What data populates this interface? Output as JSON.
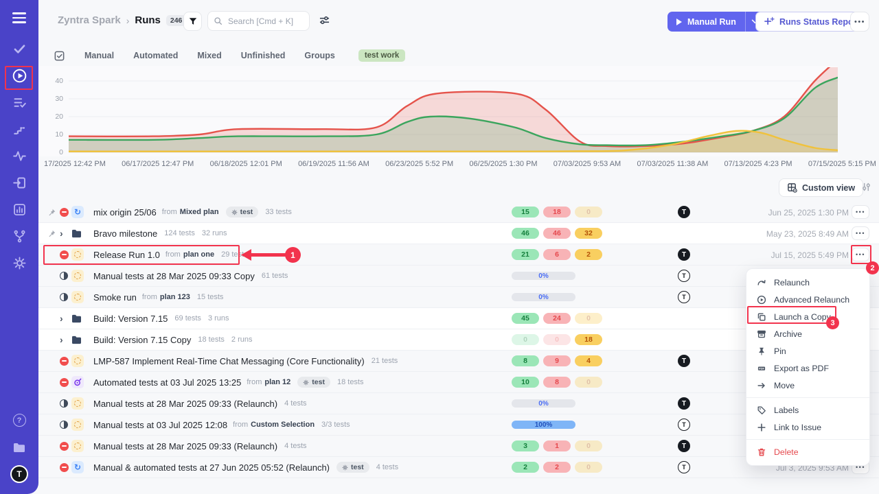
{
  "app": {
    "avatar_initial": "T"
  },
  "labels": {
    "from": "from"
  },
  "sidebar": {
    "items": [
      "check",
      "play-circle",
      "checklist",
      "steps",
      "pulse",
      "box-arrow",
      "bar-chart",
      "branch",
      "gear"
    ],
    "active_item": "play-circle",
    "bottom": [
      "help",
      "folders",
      "avatar"
    ]
  },
  "header": {
    "breadcrumb": {
      "project": "Zyntra Spark",
      "separator": "›",
      "page": "Runs",
      "count": "246"
    },
    "search_placeholder": "Search [Cmd + K]",
    "manual_run_label": "Manual Run",
    "runs_status_report_label": "Runs Status Report"
  },
  "tabs": {
    "items": [
      "Manual",
      "Automated",
      "Mixed",
      "Unfinished",
      "Groups"
    ],
    "filter_tag": "test work"
  },
  "chart_data": {
    "type": "area",
    "title": "",
    "x_labels": [
      "17/2025 12:42 PM",
      "06/17/2025 12:47 PM",
      "06/18/2025 12:01 PM",
      "06/19/2025 11:56 AM",
      "06/23/2025 5:52 PM",
      "06/25/2025 1:30 PM",
      "07/03/2025 9:53 AM",
      "07/03/2025 11:38 AM",
      "07/13/2025 4:23 PM",
      "07/15/2025 5:15 PM"
    ],
    "yticks": [
      0,
      10,
      20,
      30,
      40
    ],
    "ylim": [
      0,
      40
    ],
    "grid": true,
    "legend": "none",
    "series": [
      {
        "name": "red",
        "color": "#E5534B",
        "fill": "rgba(229,83,75,0.20)",
        "points": [
          [
            0,
            9
          ],
          [
            0.11,
            9
          ],
          [
            0.17,
            10
          ],
          [
            0.22,
            13
          ],
          [
            0.33,
            13
          ],
          [
            0.4,
            14
          ],
          [
            0.44,
            26
          ],
          [
            0.48,
            33
          ],
          [
            0.58,
            33
          ],
          [
            0.62,
            24
          ],
          [
            0.665,
            6
          ],
          [
            0.7,
            3.5
          ],
          [
            0.75,
            3.5
          ],
          [
            0.8,
            5
          ],
          [
            0.85,
            8.5
          ],
          [
            0.889,
            12
          ],
          [
            0.93,
            20
          ],
          [
            0.97,
            40
          ],
          [
            1,
            52
          ]
        ]
      },
      {
        "name": "green",
        "color": "#3BA55D",
        "fill": "rgba(59,165,93,0.20)",
        "points": [
          [
            0,
            7
          ],
          [
            0.11,
            7
          ],
          [
            0.17,
            8
          ],
          [
            0.22,
            9
          ],
          [
            0.33,
            9
          ],
          [
            0.4,
            10
          ],
          [
            0.44,
            17
          ],
          [
            0.47,
            20
          ],
          [
            0.52,
            19
          ],
          [
            0.58,
            14
          ],
          [
            0.62,
            8
          ],
          [
            0.665,
            4.5
          ],
          [
            0.7,
            4
          ],
          [
            0.75,
            4
          ],
          [
            0.8,
            6
          ],
          [
            0.85,
            9
          ],
          [
            0.889,
            12
          ],
          [
            0.93,
            19
          ],
          [
            0.97,
            36
          ],
          [
            1,
            42
          ]
        ]
      },
      {
        "name": "yellow",
        "color": "#F0C23C",
        "fill": "rgba(240,194,60,0.28)",
        "points": [
          [
            0,
            0.5
          ],
          [
            0.55,
            0.5
          ],
          [
            0.65,
            0.6
          ],
          [
            0.72,
            1
          ],
          [
            0.78,
            4
          ],
          [
            0.83,
            9
          ],
          [
            0.868,
            12
          ],
          [
            0.9,
            11
          ],
          [
            0.93,
            7
          ],
          [
            0.97,
            2.5
          ],
          [
            1,
            1.2
          ]
        ]
      }
    ]
  },
  "toolbar": {
    "custom_view_label": "Custom view"
  },
  "list": {
    "rows": [
      {
        "pinned": true,
        "status": "stopped",
        "type": "mixed",
        "title": "mix origin 25/06",
        "from": "Mixed plan",
        "tag": "test",
        "meta": [
          "33 tests"
        ],
        "badges": [
          {
            "value": "15",
            "faded": false
          },
          {
            "value": "18",
            "faded": false
          },
          {
            "value": "0",
            "faded": true
          }
        ],
        "progress": null,
        "avatar": "filled",
        "date": "Jun 25, 2025 1:30 PM",
        "more": true,
        "white": false
      },
      {
        "pinned": true,
        "status": "expand",
        "type": "folder",
        "title": "Bravo milestone",
        "from": null,
        "tag": null,
        "meta": [
          "124 tests",
          "32 runs"
        ],
        "badges": [
          {
            "value": "46",
            "faded": false
          },
          {
            "value": "46",
            "faded": false
          },
          {
            "value": "32",
            "faded": false
          }
        ],
        "progress": null,
        "avatar": null,
        "date": "May 23, 2025 8:49 AM",
        "more": true,
        "white": true
      },
      {
        "pinned": false,
        "status": "stopped",
        "type": "manual",
        "title": "Release Run 1.0",
        "from": "plan one",
        "tag": null,
        "meta": [
          "29 tests"
        ],
        "badges": [
          {
            "value": "21",
            "faded": false
          },
          {
            "value": "6",
            "faded": false
          },
          {
            "value": "2",
            "faded": false
          }
        ],
        "progress": null,
        "avatar": "filled",
        "date": "Jul 15, 2025 5:49 PM",
        "more": true,
        "white": false
      },
      {
        "pinned": false,
        "status": "inprogress",
        "type": "manual",
        "title": "Manual tests at 28 Mar 2025 09:33 Copy",
        "from": null,
        "tag": null,
        "meta": [
          "61 tests"
        ],
        "badges": null,
        "progress": {
          "label": "0%",
          "full": false
        },
        "avatar": "outline",
        "date": null,
        "more": false,
        "white": false
      },
      {
        "pinned": false,
        "status": "inprogress",
        "type": "manual",
        "title": "Smoke run",
        "from": "plan 123",
        "tag": null,
        "meta": [
          "15 tests"
        ],
        "badges": null,
        "progress": {
          "label": "0%",
          "full": false
        },
        "avatar": "outline",
        "date": null,
        "more": false,
        "white": false
      },
      {
        "pinned": false,
        "status": "expand",
        "type": "folder",
        "title": "Build: Version 7.15",
        "from": null,
        "tag": null,
        "meta": [
          "69 tests",
          "3 runs"
        ],
        "badges": [
          {
            "value": "45",
            "faded": false
          },
          {
            "value": "24",
            "faded": false
          },
          {
            "value": "0",
            "faded": true
          }
        ],
        "progress": null,
        "avatar": null,
        "date": null,
        "more": false,
        "white": true
      },
      {
        "pinned": false,
        "status": "expand",
        "type": "folder",
        "title": "Build: Version 7.15 Copy",
        "from": null,
        "tag": null,
        "meta": [
          "18 tests",
          "2 runs"
        ],
        "badges": [
          {
            "value": "0",
            "faded": true
          },
          {
            "value": "0",
            "faded": true
          },
          {
            "value": "18",
            "faded": false
          }
        ],
        "progress": null,
        "avatar": null,
        "date": null,
        "more": false,
        "white": true
      },
      {
        "pinned": false,
        "status": "stopped",
        "type": "manual",
        "title": "LMP-587 Implement Real-Time Chat Messaging (Core Functionality)",
        "from": null,
        "tag": null,
        "meta": [
          "21 tests"
        ],
        "badges": [
          {
            "value": "8",
            "faded": false
          },
          {
            "value": "9",
            "faded": false
          },
          {
            "value": "4",
            "faded": false
          }
        ],
        "progress": null,
        "avatar": "filled",
        "date": null,
        "more": false,
        "white": false
      },
      {
        "pinned": false,
        "status": "stopped",
        "type": "automated",
        "title": "Automated tests at 03 Jul 2025 13:25",
        "from": "plan 12",
        "tag": "test",
        "meta": [
          "18 tests"
        ],
        "badges": [
          {
            "value": "10",
            "faded": false
          },
          {
            "value": "8",
            "faded": false
          },
          {
            "value": "0",
            "faded": true
          }
        ],
        "progress": null,
        "avatar": null,
        "date": null,
        "more": false,
        "white": false
      },
      {
        "pinned": false,
        "status": "inprogress",
        "type": "manual",
        "title": "Manual tests at 28 Mar 2025 09:33 (Relaunch)",
        "from": null,
        "tag": null,
        "meta": [
          "4 tests"
        ],
        "badges": null,
        "progress": {
          "label": "0%",
          "full": false
        },
        "avatar": "filled",
        "date": null,
        "more": false,
        "white": false
      },
      {
        "pinned": false,
        "status": "inprogress",
        "type": "manual",
        "title": "Manual tests at 03 Jul 2025 12:08",
        "from": "Custom Selection",
        "tag": null,
        "meta": [
          "3/3 tests"
        ],
        "badges": null,
        "progress": {
          "label": "100%",
          "full": true
        },
        "avatar": "outline",
        "date": null,
        "more": false,
        "white": false
      },
      {
        "pinned": false,
        "status": "stopped",
        "type": "manual",
        "title": "Manual tests at 28 Mar 2025 09:33 (Relaunch)",
        "from": null,
        "tag": null,
        "meta": [
          "4 tests"
        ],
        "badges": [
          {
            "value": "3",
            "faded": false
          },
          {
            "value": "1",
            "faded": false
          },
          {
            "value": "0",
            "faded": true
          }
        ],
        "progress": null,
        "avatar": "filled",
        "date": null,
        "more": false,
        "white": false
      },
      {
        "pinned": false,
        "status": "stopped",
        "type": "mixed",
        "title": "Manual & automated tests at 27 Jun 2025 05:52 (Relaunch)",
        "from": null,
        "tag": "test",
        "meta": [
          "4 tests"
        ],
        "badges": [
          {
            "value": "2",
            "faded": false
          },
          {
            "value": "2",
            "faded": false
          },
          {
            "value": "0",
            "faded": true
          }
        ],
        "progress": null,
        "avatar": "outline",
        "date": "Jul 3, 2025 9:53 AM",
        "more": true,
        "white": false
      }
    ]
  },
  "context_menu": {
    "items": [
      {
        "label": "Relaunch",
        "icon": "relaunch",
        "danger": false
      },
      {
        "label": "Advanced Relaunch",
        "icon": "play-circle",
        "danger": false
      },
      {
        "label": "Launch a Copy",
        "icon": "copy",
        "danger": false
      },
      {
        "label": "Archive",
        "icon": "archive",
        "danger": false
      },
      {
        "label": "Pin",
        "icon": "pin",
        "danger": false
      },
      {
        "label": "Export as PDF",
        "icon": "pdf",
        "danger": false
      },
      {
        "label": "Move",
        "icon": "arrow-right",
        "danger": false
      },
      {
        "label": "Labels",
        "icon": "tag",
        "danger": false
      },
      {
        "label": "Link to Issue",
        "icon": "plus",
        "danger": false
      },
      {
        "label": "Delete",
        "icon": "trash",
        "danger": true
      }
    ],
    "separators_after": [
      "Move",
      "Link to Issue"
    ]
  },
  "annotations": {
    "steps": [
      "1",
      "2",
      "3"
    ]
  }
}
